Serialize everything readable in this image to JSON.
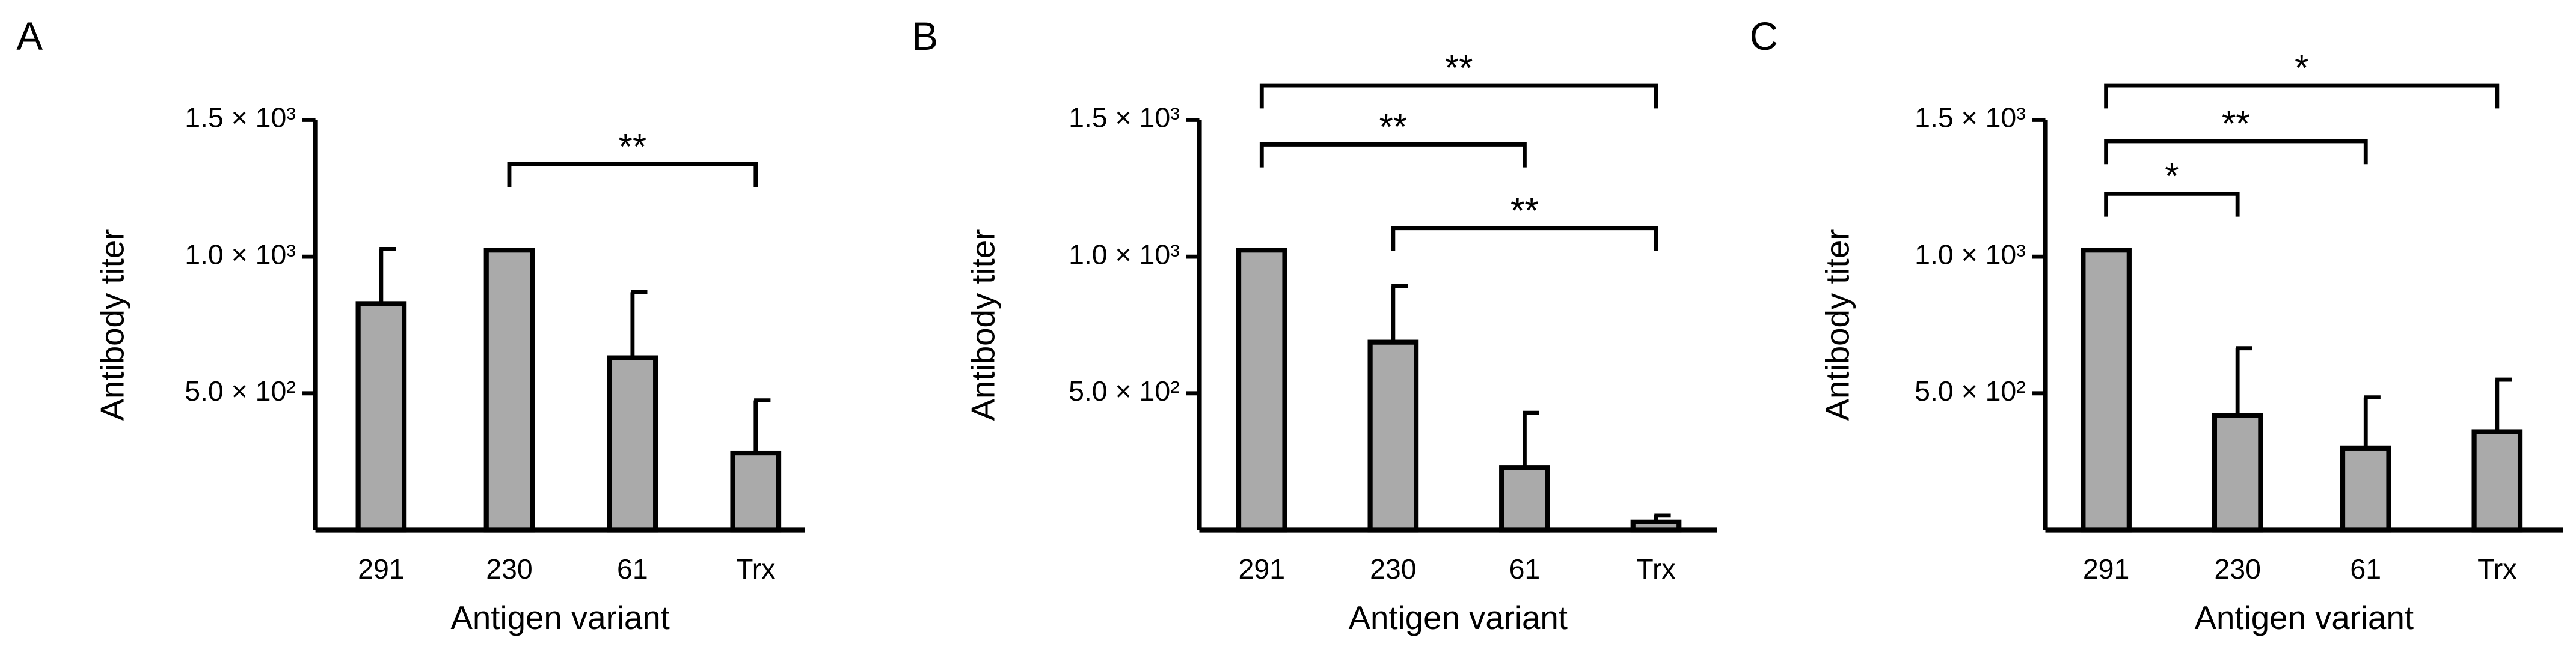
{
  "chart_data": [
    {
      "type": "bar",
      "panel": "A",
      "x_label": "Antigen variant",
      "y_label": "Antibody titer",
      "categories": [
        "291",
        "230",
        "61",
        "Trx"
      ],
      "values": [
        828,
        1024,
        630,
        282
      ],
      "errors": [
        200,
        null,
        240,
        192
      ],
      "color": "#aaaaaa",
      "ylim": [
        0,
        1500
      ],
      "yticks": [
        {
          "value": 500,
          "label": "5.0 × 10²"
        },
        {
          "value": 1000,
          "label": "1.0 × 10³"
        },
        {
          "value": 1500,
          "label": "1.5 × 10³"
        }
      ],
      "annotations": [
        {
          "label": "**",
          "from": 1,
          "to": 3
        }
      ]
    },
    {
      "type": "bar",
      "panel": "B",
      "x_label": "Antigen variant",
      "y_label": "Antibody titer",
      "categories": [
        "291",
        "230",
        "61",
        "Trx"
      ],
      "values": [
        1024,
        687,
        229,
        30
      ],
      "errors": [
        null,
        205,
        200,
        24
      ],
      "color": "#aaaaaa",
      "ylim": [
        0,
        1500
      ],
      "yticks": [
        {
          "value": 500,
          "label": "5.0 × 10²"
        },
        {
          "value": 1000,
          "label": "1.0 × 10³"
        },
        {
          "value": 1500,
          "label": "1.5 × 10³"
        }
      ],
      "annotations": [
        {
          "label": "**",
          "from": 0,
          "to": 3
        },
        {
          "label": "**",
          "from": 0,
          "to": 2
        },
        {
          "label": "**",
          "from": 1,
          "to": 3
        }
      ]
    },
    {
      "type": "bar",
      "panel": "C",
      "x_label": "Antigen variant",
      "y_label": "Antibody titer",
      "categories": [
        "291",
        "230",
        "61",
        "Trx"
      ],
      "values": [
        1024,
        420,
        300,
        360
      ],
      "errors": [
        null,
        245,
        185,
        190
      ],
      "color": "#aaaaaa",
      "ylim": [
        0,
        1500
      ],
      "yticks": [
        {
          "value": 500,
          "label": "5.0 × 10²"
        },
        {
          "value": 1000,
          "label": "1.0 × 10³"
        },
        {
          "value": 1500,
          "label": "1.5 × 10³"
        }
      ],
      "annotations": [
        {
          "label": "*",
          "from": 0,
          "to": 3
        },
        {
          "label": "**",
          "from": 0,
          "to": 2
        },
        {
          "label": "*",
          "from": 0,
          "to": 1
        }
      ]
    }
  ]
}
